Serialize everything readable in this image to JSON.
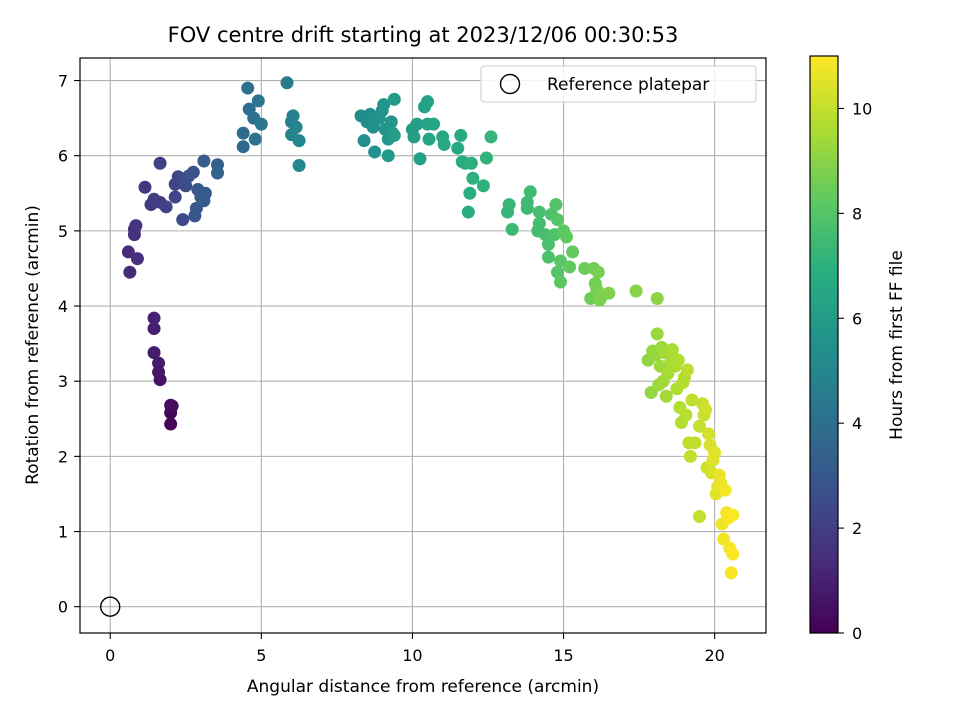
{
  "chart_data": {
    "type": "scatter",
    "title": "FOV centre drift starting at 2023/12/06 00:30:53",
    "xlabel": "Angular distance from reference (arcmin)",
    "ylabel": "Rotation from reference (arcmin)",
    "xlim": [
      -1.0,
      21.7
    ],
    "ylim": [
      -0.35,
      7.3
    ],
    "xticks": [
      0,
      5,
      10,
      15,
      20
    ],
    "yticks": [
      0,
      1,
      2,
      3,
      4,
      5,
      6,
      7
    ],
    "grid": true,
    "legend": {
      "entries": [
        "Reference platepar"
      ],
      "location": "upper right"
    },
    "reference_point": {
      "x": 0,
      "y": 0,
      "label": "Reference platepar",
      "marker": "open-circle"
    },
    "colorbar": {
      "label": "Hours from first FF file",
      "range": [
        0,
        11
      ],
      "ticks": [
        0,
        2,
        4,
        6,
        8,
        10
      ],
      "colormap": "viridis"
    },
    "points": [
      {
        "x": 2.0,
        "y": 2.43,
        "c": 0.1
      },
      {
        "x": 2.0,
        "y": 2.58,
        "c": 0.2
      },
      {
        "x": 2.0,
        "y": 2.68,
        "c": 0.3
      },
      {
        "x": 2.05,
        "y": 2.67,
        "c": 0.35
      },
      {
        "x": 1.65,
        "y": 3.02,
        "c": 0.6
      },
      {
        "x": 1.6,
        "y": 3.12,
        "c": 0.7
      },
      {
        "x": 1.6,
        "y": 3.24,
        "c": 0.8
      },
      {
        "x": 1.45,
        "y": 3.38,
        "c": 0.9
      },
      {
        "x": 1.45,
        "y": 3.7,
        "c": 1.0
      },
      {
        "x": 1.45,
        "y": 3.84,
        "c": 1.1
      },
      {
        "x": 0.65,
        "y": 4.45,
        "c": 1.3
      },
      {
        "x": 0.6,
        "y": 4.72,
        "c": 1.4
      },
      {
        "x": 0.9,
        "y": 4.63,
        "c": 1.5
      },
      {
        "x": 0.8,
        "y": 4.95,
        "c": 1.6
      },
      {
        "x": 0.8,
        "y": 5.02,
        "c": 1.65
      },
      {
        "x": 0.85,
        "y": 5.07,
        "c": 1.7
      },
      {
        "x": 1.15,
        "y": 5.58,
        "c": 1.8
      },
      {
        "x": 1.35,
        "y": 5.35,
        "c": 1.9
      },
      {
        "x": 1.45,
        "y": 5.42,
        "c": 2.0
      },
      {
        "x": 1.65,
        "y": 5.38,
        "c": 2.05
      },
      {
        "x": 1.65,
        "y": 5.9,
        "c": 2.1
      },
      {
        "x": 1.85,
        "y": 5.32,
        "c": 2.2
      },
      {
        "x": 2.15,
        "y": 5.45,
        "c": 2.3
      },
      {
        "x": 2.15,
        "y": 5.62,
        "c": 2.35
      },
      {
        "x": 2.25,
        "y": 5.72,
        "c": 2.4
      },
      {
        "x": 2.4,
        "y": 5.15,
        "c": 2.5
      },
      {
        "x": 2.5,
        "y": 5.6,
        "c": 2.6
      },
      {
        "x": 2.6,
        "y": 5.73,
        "c": 2.7
      },
      {
        "x": 2.75,
        "y": 5.78,
        "c": 2.8
      },
      {
        "x": 2.8,
        "y": 5.2,
        "c": 2.9
      },
      {
        "x": 2.85,
        "y": 5.3,
        "c": 3.0
      },
      {
        "x": 2.9,
        "y": 5.55,
        "c": 3.05
      },
      {
        "x": 3.0,
        "y": 5.45,
        "c": 3.1
      },
      {
        "x": 3.1,
        "y": 5.4,
        "c": 3.15
      },
      {
        "x": 3.15,
        "y": 5.5,
        "c": 3.2
      },
      {
        "x": 3.1,
        "y": 5.93,
        "c": 3.3
      },
      {
        "x": 3.55,
        "y": 5.88,
        "c": 3.4
      },
      {
        "x": 3.55,
        "y": 5.77,
        "c": 3.5
      },
      {
        "x": 4.4,
        "y": 6.12,
        "c": 3.8
      },
      {
        "x": 4.4,
        "y": 6.3,
        "c": 3.9
      },
      {
        "x": 4.6,
        "y": 6.62,
        "c": 4.0
      },
      {
        "x": 4.55,
        "y": 6.9,
        "c": 4.05
      },
      {
        "x": 4.75,
        "y": 6.5,
        "c": 4.1
      },
      {
        "x": 4.8,
        "y": 6.22,
        "c": 4.2
      },
      {
        "x": 4.9,
        "y": 6.73,
        "c": 4.3
      },
      {
        "x": 5.0,
        "y": 6.42,
        "c": 4.4
      },
      {
        "x": 5.85,
        "y": 6.97,
        "c": 4.6
      },
      {
        "x": 6.0,
        "y": 6.45,
        "c": 4.7
      },
      {
        "x": 6.05,
        "y": 6.53,
        "c": 4.8
      },
      {
        "x": 6.0,
        "y": 6.28,
        "c": 4.9
      },
      {
        "x": 6.15,
        "y": 6.38,
        "c": 5.0
      },
      {
        "x": 6.25,
        "y": 6.2,
        "c": 5.1
      },
      {
        "x": 6.25,
        "y": 5.87,
        "c": 5.2
      },
      {
        "x": 8.3,
        "y": 6.53,
        "c": 5.3
      },
      {
        "x": 8.4,
        "y": 6.2,
        "c": 5.4
      },
      {
        "x": 8.5,
        "y": 6.45,
        "c": 5.4
      },
      {
        "x": 8.6,
        "y": 6.55,
        "c": 5.5
      },
      {
        "x": 8.7,
        "y": 6.38,
        "c": 5.5
      },
      {
        "x": 8.75,
        "y": 6.05,
        "c": 5.55
      },
      {
        "x": 8.9,
        "y": 6.5,
        "c": 5.6
      },
      {
        "x": 9.0,
        "y": 6.6,
        "c": 5.65
      },
      {
        "x": 9.05,
        "y": 6.68,
        "c": 5.7
      },
      {
        "x": 9.1,
        "y": 6.35,
        "c": 5.75
      },
      {
        "x": 9.2,
        "y": 6.22,
        "c": 5.8
      },
      {
        "x": 9.2,
        "y": 6.0,
        "c": 5.85
      },
      {
        "x": 9.3,
        "y": 6.45,
        "c": 5.9
      },
      {
        "x": 9.35,
        "y": 6.3,
        "c": 5.95
      },
      {
        "x": 9.4,
        "y": 6.75,
        "c": 6.0
      },
      {
        "x": 9.4,
        "y": 6.27,
        "c": 6.05
      },
      {
        "x": 10.0,
        "y": 6.35,
        "c": 6.1
      },
      {
        "x": 10.05,
        "y": 6.25,
        "c": 6.15
      },
      {
        "x": 10.15,
        "y": 6.42,
        "c": 6.2
      },
      {
        "x": 10.25,
        "y": 5.96,
        "c": 6.25
      },
      {
        "x": 10.4,
        "y": 6.65,
        "c": 6.3
      },
      {
        "x": 10.5,
        "y": 6.72,
        "c": 6.35
      },
      {
        "x": 10.5,
        "y": 6.42,
        "c": 6.4
      },
      {
        "x": 10.55,
        "y": 6.22,
        "c": 6.45
      },
      {
        "x": 10.7,
        "y": 6.42,
        "c": 6.5
      },
      {
        "x": 11.0,
        "y": 6.25,
        "c": 6.6
      },
      {
        "x": 11.05,
        "y": 6.15,
        "c": 6.65
      },
      {
        "x": 11.5,
        "y": 6.1,
        "c": 6.7
      },
      {
        "x": 11.6,
        "y": 6.27,
        "c": 6.75
      },
      {
        "x": 11.65,
        "y": 5.92,
        "c": 6.8
      },
      {
        "x": 11.75,
        "y": 5.9,
        "c": 6.85
      },
      {
        "x": 11.85,
        "y": 5.25,
        "c": 6.9
      },
      {
        "x": 11.9,
        "y": 5.5,
        "c": 6.95
      },
      {
        "x": 11.95,
        "y": 5.9,
        "c": 7.0
      },
      {
        "x": 12.0,
        "y": 5.7,
        "c": 7.05
      },
      {
        "x": 12.35,
        "y": 5.6,
        "c": 7.1
      },
      {
        "x": 12.45,
        "y": 5.97,
        "c": 7.15
      },
      {
        "x": 12.6,
        "y": 6.25,
        "c": 7.2
      },
      {
        "x": 13.15,
        "y": 5.25,
        "c": 7.3
      },
      {
        "x": 13.2,
        "y": 5.35,
        "c": 7.35
      },
      {
        "x": 13.3,
        "y": 5.02,
        "c": 7.4
      },
      {
        "x": 13.8,
        "y": 5.3,
        "c": 7.45
      },
      {
        "x": 13.8,
        "y": 5.38,
        "c": 7.5
      },
      {
        "x": 13.9,
        "y": 5.52,
        "c": 7.55
      },
      {
        "x": 14.15,
        "y": 5.0,
        "c": 7.6
      },
      {
        "x": 14.2,
        "y": 5.1,
        "c": 7.65
      },
      {
        "x": 14.2,
        "y": 5.25,
        "c": 7.7
      },
      {
        "x": 14.4,
        "y": 4.95,
        "c": 7.75
      },
      {
        "x": 14.5,
        "y": 4.82,
        "c": 7.8
      },
      {
        "x": 14.5,
        "y": 4.65,
        "c": 7.85
      },
      {
        "x": 14.6,
        "y": 5.22,
        "c": 7.9
      },
      {
        "x": 14.7,
        "y": 4.95,
        "c": 7.95
      },
      {
        "x": 14.75,
        "y": 5.35,
        "c": 8.0
      },
      {
        "x": 14.8,
        "y": 5.15,
        "c": 8.05
      },
      {
        "x": 14.8,
        "y": 4.45,
        "c": 8.1
      },
      {
        "x": 14.9,
        "y": 4.6,
        "c": 8.15
      },
      {
        "x": 14.9,
        "y": 4.32,
        "c": 8.2
      },
      {
        "x": 15.0,
        "y": 5.0,
        "c": 8.25
      },
      {
        "x": 15.1,
        "y": 4.92,
        "c": 8.3
      },
      {
        "x": 15.2,
        "y": 4.52,
        "c": 8.35
      },
      {
        "x": 15.3,
        "y": 4.72,
        "c": 8.4
      },
      {
        "x": 15.7,
        "y": 4.5,
        "c": 8.5
      },
      {
        "x": 15.9,
        "y": 4.1,
        "c": 8.55
      },
      {
        "x": 16.0,
        "y": 4.5,
        "c": 8.6
      },
      {
        "x": 16.05,
        "y": 4.3,
        "c": 8.65
      },
      {
        "x": 16.1,
        "y": 4.22,
        "c": 8.7
      },
      {
        "x": 16.15,
        "y": 4.45,
        "c": 8.75
      },
      {
        "x": 16.2,
        "y": 4.08,
        "c": 8.8
      },
      {
        "x": 16.3,
        "y": 4.15,
        "c": 8.85
      },
      {
        "x": 16.5,
        "y": 4.17,
        "c": 8.9
      },
      {
        "x": 17.4,
        "y": 4.2,
        "c": 9.0
      },
      {
        "x": 18.1,
        "y": 4.1,
        "c": 9.1
      },
      {
        "x": 17.8,
        "y": 3.28,
        "c": 9.15
      },
      {
        "x": 17.9,
        "y": 2.85,
        "c": 9.2
      },
      {
        "x": 17.95,
        "y": 3.4,
        "c": 9.25
      },
      {
        "x": 18.05,
        "y": 3.35,
        "c": 9.3
      },
      {
        "x": 18.1,
        "y": 3.63,
        "c": 9.3
      },
      {
        "x": 18.15,
        "y": 2.95,
        "c": 9.35
      },
      {
        "x": 18.2,
        "y": 3.2,
        "c": 9.4
      },
      {
        "x": 18.25,
        "y": 3.45,
        "c": 9.4
      },
      {
        "x": 18.3,
        "y": 3.0,
        "c": 9.45
      },
      {
        "x": 18.35,
        "y": 3.38,
        "c": 9.5
      },
      {
        "x": 18.4,
        "y": 2.8,
        "c": 9.5
      },
      {
        "x": 18.45,
        "y": 3.1,
        "c": 9.55
      },
      {
        "x": 18.55,
        "y": 3.25,
        "c": 9.6
      },
      {
        "x": 18.6,
        "y": 3.42,
        "c": 9.6
      },
      {
        "x": 18.7,
        "y": 3.2,
        "c": 9.65
      },
      {
        "x": 18.75,
        "y": 2.9,
        "c": 9.7
      },
      {
        "x": 18.8,
        "y": 3.28,
        "c": 9.7
      },
      {
        "x": 18.85,
        "y": 2.65,
        "c": 9.75
      },
      {
        "x": 18.9,
        "y": 2.45,
        "c": 9.75
      },
      {
        "x": 18.95,
        "y": 2.98,
        "c": 9.8
      },
      {
        "x": 19.0,
        "y": 3.05,
        "c": 9.8
      },
      {
        "x": 19.05,
        "y": 2.55,
        "c": 9.85
      },
      {
        "x": 19.1,
        "y": 3.15,
        "c": 9.9
      },
      {
        "x": 19.15,
        "y": 2.18,
        "c": 9.9
      },
      {
        "x": 19.2,
        "y": 2.0,
        "c": 9.95
      },
      {
        "x": 19.25,
        "y": 2.75,
        "c": 10.0
      },
      {
        "x": 19.35,
        "y": 2.18,
        "c": 10.0
      },
      {
        "x": 19.5,
        "y": 2.4,
        "c": 10.05
      },
      {
        "x": 19.5,
        "y": 1.2,
        "c": 10.1
      },
      {
        "x": 19.6,
        "y": 2.7,
        "c": 10.1
      },
      {
        "x": 19.65,
        "y": 2.55,
        "c": 10.15
      },
      {
        "x": 19.7,
        "y": 2.62,
        "c": 10.2
      },
      {
        "x": 19.75,
        "y": 1.85,
        "c": 10.25
      },
      {
        "x": 19.8,
        "y": 2.3,
        "c": 10.3
      },
      {
        "x": 19.85,
        "y": 2.15,
        "c": 10.35
      },
      {
        "x": 19.9,
        "y": 1.78,
        "c": 10.4
      },
      {
        "x": 19.95,
        "y": 1.95,
        "c": 10.45
      },
      {
        "x": 20.0,
        "y": 2.05,
        "c": 10.5
      },
      {
        "x": 20.05,
        "y": 1.5,
        "c": 10.55
      },
      {
        "x": 20.1,
        "y": 1.6,
        "c": 10.6
      },
      {
        "x": 20.15,
        "y": 1.75,
        "c": 10.65
      },
      {
        "x": 20.2,
        "y": 1.65,
        "c": 10.7
      },
      {
        "x": 20.25,
        "y": 1.1,
        "c": 10.75
      },
      {
        "x": 20.3,
        "y": 0.9,
        "c": 10.8
      },
      {
        "x": 20.35,
        "y": 1.55,
        "c": 10.82
      },
      {
        "x": 20.4,
        "y": 1.25,
        "c": 10.85
      },
      {
        "x": 20.45,
        "y": 1.18,
        "c": 10.88
      },
      {
        "x": 20.5,
        "y": 0.78,
        "c": 10.9
      },
      {
        "x": 20.55,
        "y": 0.45,
        "c": 10.92
      },
      {
        "x": 20.6,
        "y": 1.22,
        "c": 10.95
      },
      {
        "x": 20.6,
        "y": 0.7,
        "c": 10.97
      }
    ]
  }
}
